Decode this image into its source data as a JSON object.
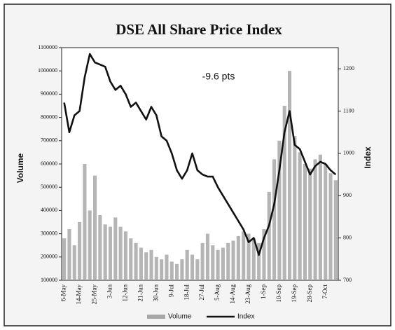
{
  "chart_data": {
    "type": "bar",
    "title": "DSE All Share Price Index",
    "annotation": "-9.6 pts",
    "ylabel": "Volume",
    "y2label": "Index",
    "categories": [
      "6-May",
      null,
      null,
      "14-May",
      null,
      null,
      "25-May",
      null,
      null,
      "3-Jun",
      null,
      null,
      "12-Jun",
      null,
      null,
      "21-Jun",
      null,
      null,
      "30-Jun",
      null,
      null,
      "9-Jul",
      null,
      null,
      "18-Jul",
      null,
      null,
      "27-Jul",
      null,
      null,
      "5-Aug",
      null,
      null,
      "14-Aug",
      null,
      null,
      "23-Aug",
      null,
      null,
      "1-Sep",
      null,
      null,
      "10-Sep",
      null,
      null,
      "19-Sep",
      null,
      null,
      "28-Sep",
      null,
      null,
      "7-Oct",
      null,
      null
    ],
    "series": [
      {
        "name": "Volume",
        "type": "bar",
        "color": "#a8a8a8",
        "values": [
          280000,
          320000,
          250000,
          350000,
          600000,
          400000,
          550000,
          380000,
          340000,
          330000,
          370000,
          330000,
          310000,
          280000,
          260000,
          240000,
          220000,
          230000,
          200000,
          190000,
          210000,
          180000,
          170000,
          190000,
          230000,
          210000,
          190000,
          260000,
          300000,
          250000,
          230000,
          240000,
          260000,
          270000,
          290000,
          310000,
          300000,
          280000,
          260000,
          320000,
          480000,
          620000,
          700000,
          850000,
          1000000,
          720000,
          650000,
          600000,
          580000,
          620000,
          640000,
          600000,
          560000,
          530000
        ]
      },
      {
        "name": "Index",
        "type": "line",
        "axis": "y2",
        "color": "#111111",
        "values": [
          1120,
          1050,
          1090,
          1100,
          1180,
          1235,
          1215,
          1210,
          1205,
          1170,
          1150,
          1160,
          1140,
          1110,
          1120,
          1100,
          1080,
          1110,
          1090,
          1040,
          1030,
          1000,
          960,
          940,
          960,
          1000,
          960,
          950,
          945,
          945,
          920,
          900,
          880,
          860,
          840,
          820,
          790,
          800,
          760,
          800,
          830,
          880,
          960,
          1050,
          1100,
          1020,
          1010,
          980,
          950,
          970,
          980,
          975,
          960,
          950
        ]
      }
    ],
    "ylim": [
      100000,
      1100000
    ],
    "yticks": [
      100000,
      200000,
      300000,
      400000,
      500000,
      600000,
      700000,
      800000,
      900000,
      1000000,
      1100000
    ],
    "y2lim": [
      700,
      1250
    ],
    "y2ticks": [
      700,
      800,
      900,
      1000,
      1100,
      1200
    ],
    "grid": false,
    "legend": "bottom"
  }
}
